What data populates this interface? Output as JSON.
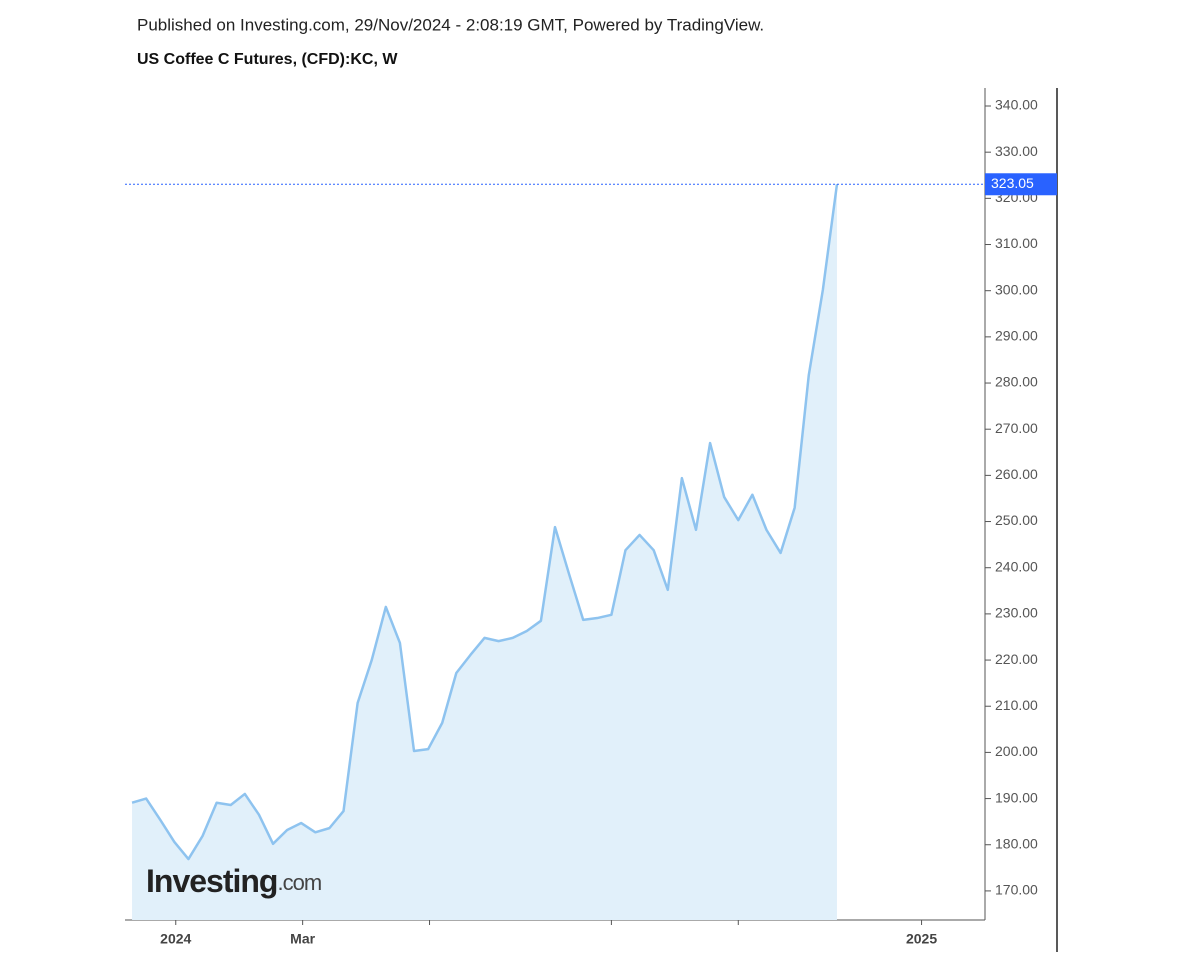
{
  "header": {
    "published": "Published on Investing.com, 29/Nov/2024 - 2:08:19 GMT, Powered by TradingView."
  },
  "logo": {
    "main": "Investing",
    "suffix": ".com"
  },
  "chart_data": {
    "type": "area",
    "title": "US Coffee C Futures, (CFD):KC, W",
    "x": [
      0,
      1,
      2,
      3,
      4,
      5,
      6,
      7,
      8,
      9,
      10,
      11,
      12,
      13,
      14,
      15,
      16,
      17,
      18,
      19,
      20,
      21,
      22,
      23,
      24,
      25,
      26,
      27,
      28,
      29,
      30,
      31,
      32,
      33,
      34,
      35,
      36,
      37,
      38,
      39,
      40,
      41,
      42,
      43,
      44,
      45,
      46,
      47,
      48,
      49,
      50
    ],
    "series": [
      {
        "name": "KC",
        "color": "#8ec3ef",
        "fill": "#e1f0fa",
        "values": [
          189.1,
          190.0,
          185.4,
          180.6,
          176.9,
          181.9,
          189.1,
          188.6,
          191.0,
          186.5,
          180.2,
          183.2,
          184.7,
          182.7,
          183.6,
          187.3,
          210.7,
          220.0,
          231.5,
          223.7,
          200.3,
          200.7,
          206.4,
          217.2,
          221.1,
          224.8,
          224.1,
          224.8,
          226.3,
          228.5,
          248.8,
          238.6,
          228.7,
          229.1,
          229.8,
          243.8,
          247.1,
          243.8,
          235.2,
          259.4,
          248.2,
          267.0,
          255.3,
          250.3,
          255.8,
          248.2,
          243.2,
          253.0,
          281.7,
          300.2,
          323.05
        ]
      }
    ],
    "last_price": 323.05,
    "last_price_color": "#2962ff",
    "xlim": [
      -0.5,
      60.5
    ],
    "xticks": [
      {
        "value": 3.1,
        "label": "2024"
      },
      {
        "value": 12.1,
        "label": "Mar"
      },
      {
        "value": 21.1,
        "label": null
      },
      {
        "value": 34.0,
        "label": null
      },
      {
        "value": 43.0,
        "label": null
      },
      {
        "value": 56.0,
        "label": "2025"
      }
    ],
    "ylim": [
      163.7,
      343.9
    ],
    "yticks": [
      {
        "value": 170,
        "label": "170.00"
      },
      {
        "value": 180,
        "label": "180.00"
      },
      {
        "value": 190,
        "label": "190.00"
      },
      {
        "value": 200,
        "label": "200.00"
      },
      {
        "value": 210,
        "label": "210.00"
      },
      {
        "value": 220,
        "label": "220.00"
      },
      {
        "value": 230,
        "label": "230.00"
      },
      {
        "value": 240,
        "label": "240.00"
      },
      {
        "value": 250,
        "label": "250.00"
      },
      {
        "value": 260,
        "label": "260.00"
      },
      {
        "value": 270,
        "label": "270.00"
      },
      {
        "value": 280,
        "label": "280.00"
      },
      {
        "value": 290,
        "label": "290.00"
      },
      {
        "value": 300,
        "label": "300.00"
      },
      {
        "value": 310,
        "label": "310.00"
      },
      {
        "value": 320,
        "label": "320.00"
      },
      {
        "value": 330,
        "label": "330.00"
      },
      {
        "value": 340,
        "label": "340.00"
      }
    ]
  }
}
